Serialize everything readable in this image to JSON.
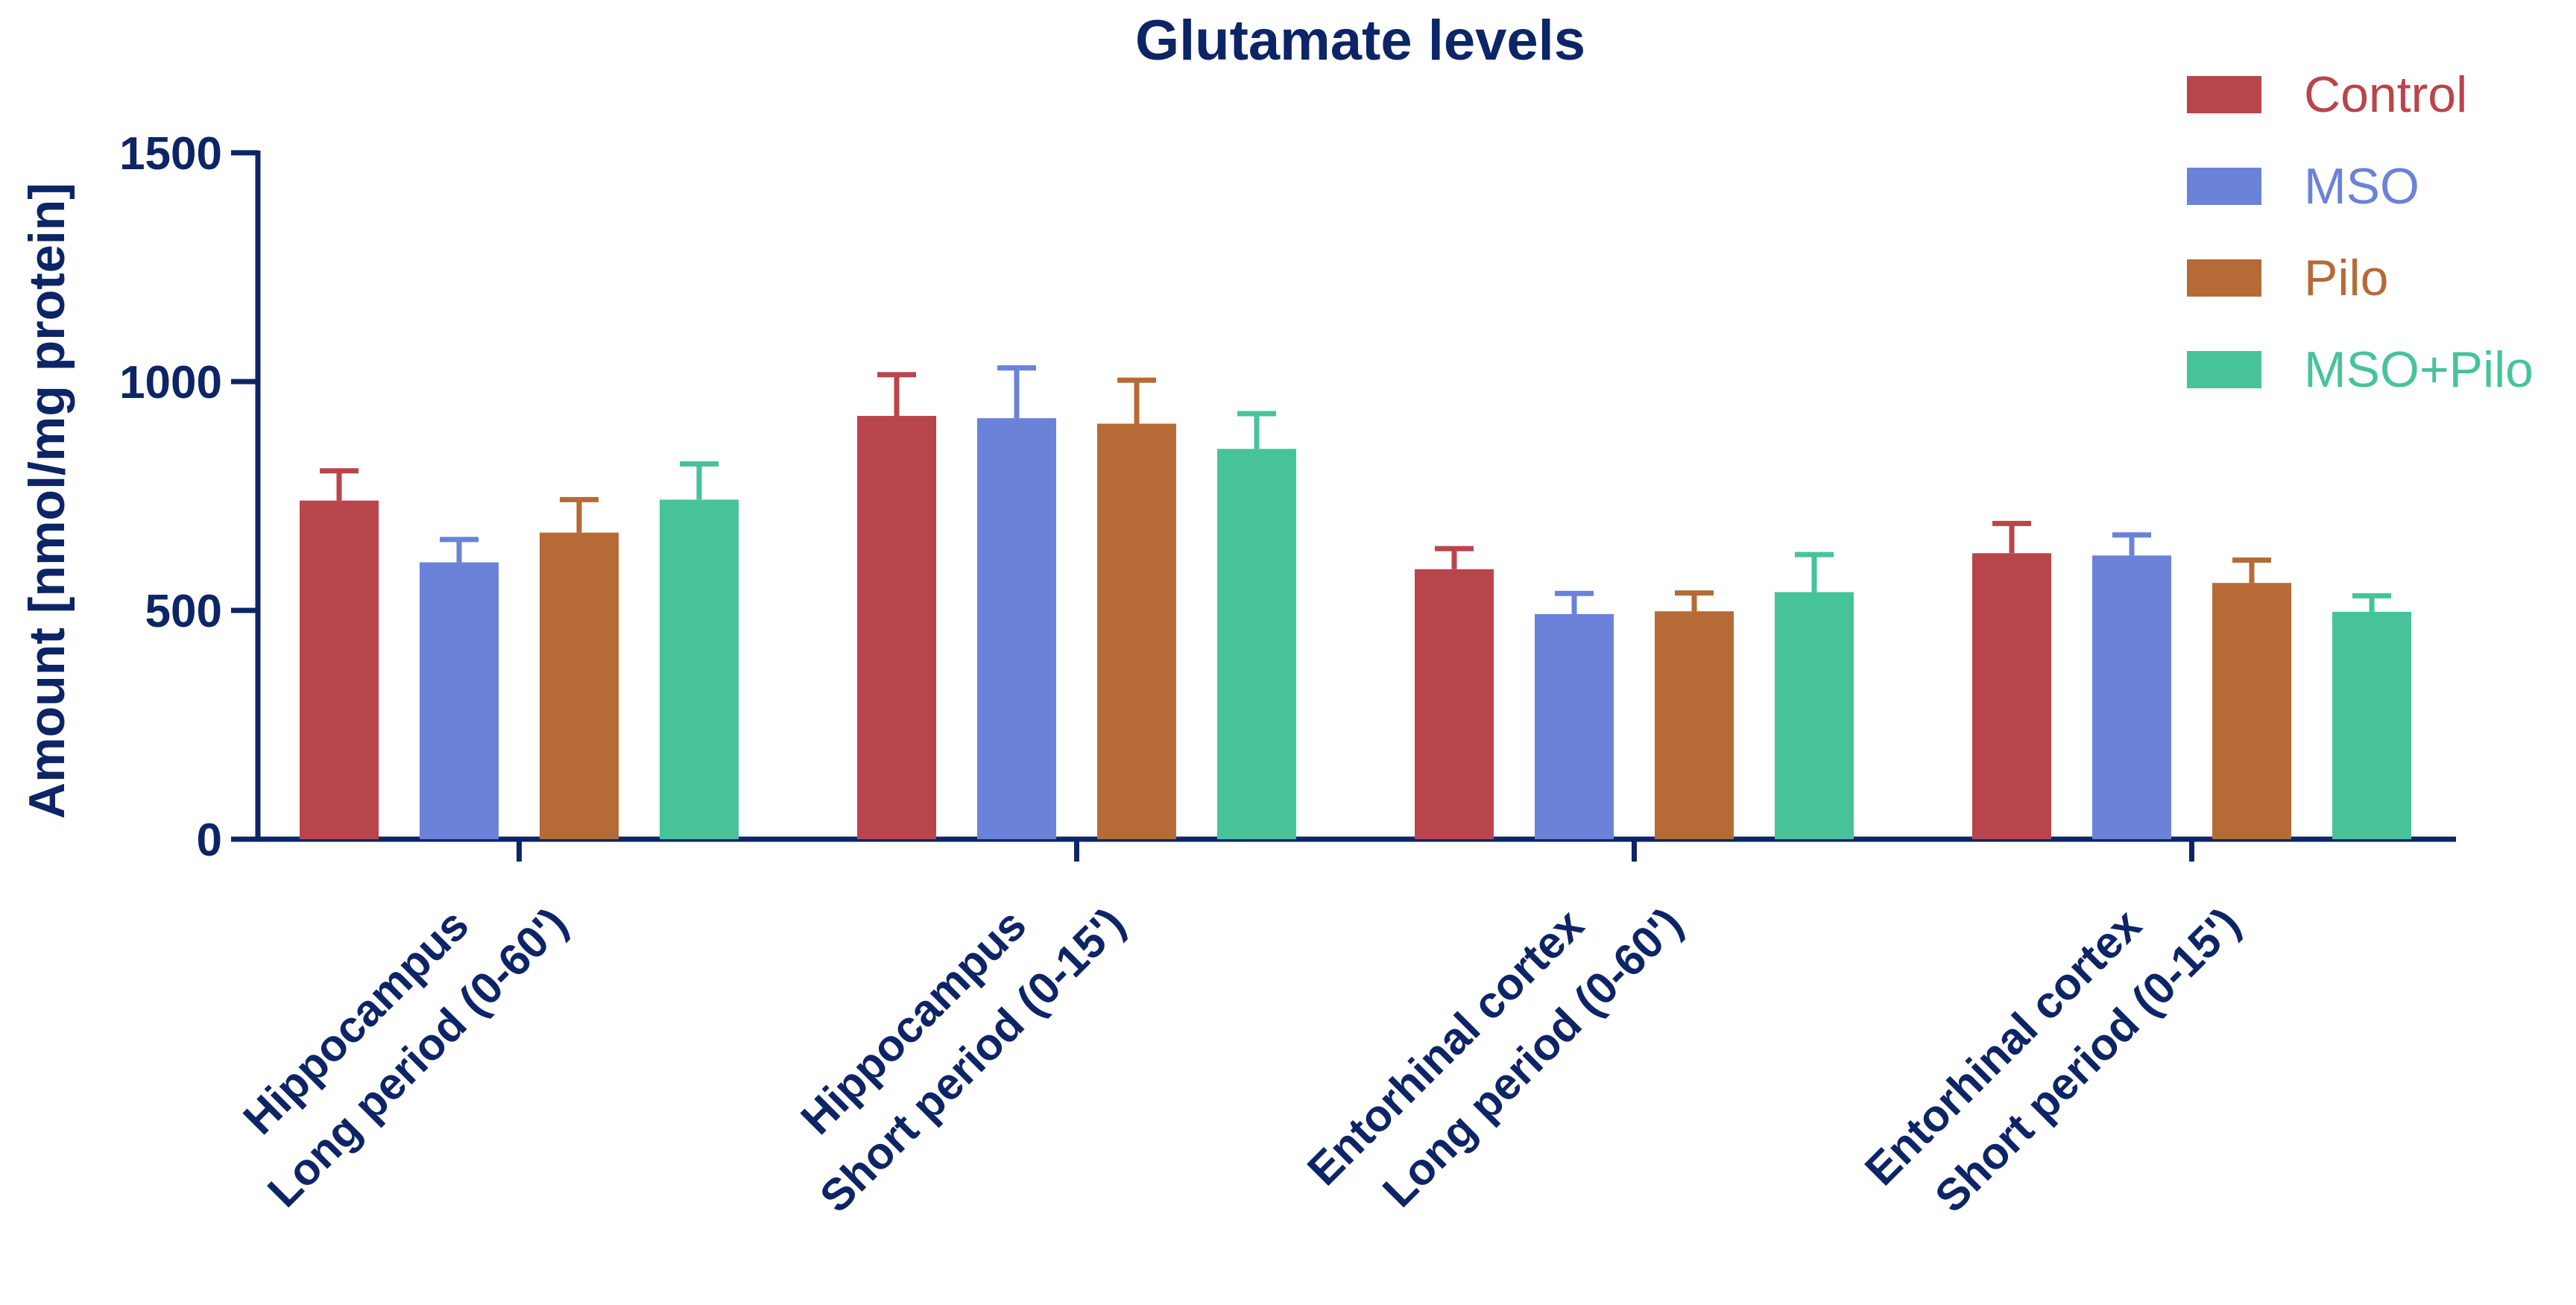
{
  "chart_data": {
    "type": "bar",
    "title": "Glutamate levels",
    "xlabel": "",
    "ylabel": "Amount [nmol/mg protein]",
    "ylim": [
      0,
      1500
    ],
    "yticks": [
      0,
      500,
      1000,
      1500
    ],
    "grid": false,
    "legend_position": "top-right",
    "categories": [
      [
        "Hippocampus",
        "Long period (0-60')"
      ],
      [
        "Hippocampus",
        "Short period (0-15')"
      ],
      [
        "Entorhinal cortex",
        "Long period (0-60')"
      ],
      [
        "Entorhinal cortex",
        "Short period (0-15')"
      ]
    ],
    "series": [
      {
        "name": "Control",
        "color": "#b8454c",
        "values": [
          740,
          925,
          590,
          625
        ],
        "errors": [
          65,
          90,
          45,
          65
        ]
      },
      {
        "name": "MSO",
        "color": "#6a82d8",
        "values": [
          605,
          920,
          492,
          620
        ],
        "errors": [
          50,
          110,
          45,
          45
        ]
      },
      {
        "name": "Pilo",
        "color": "#b66a36",
        "values": [
          670,
          908,
          498,
          560
        ],
        "errors": [
          72,
          95,
          40,
          50
        ]
      },
      {
        "name": "MSO+Pilo",
        "color": "#47c39a",
        "values": [
          742,
          853,
          540,
          497
        ],
        "errors": [
          78,
          77,
          82,
          35
        ]
      }
    ]
  }
}
